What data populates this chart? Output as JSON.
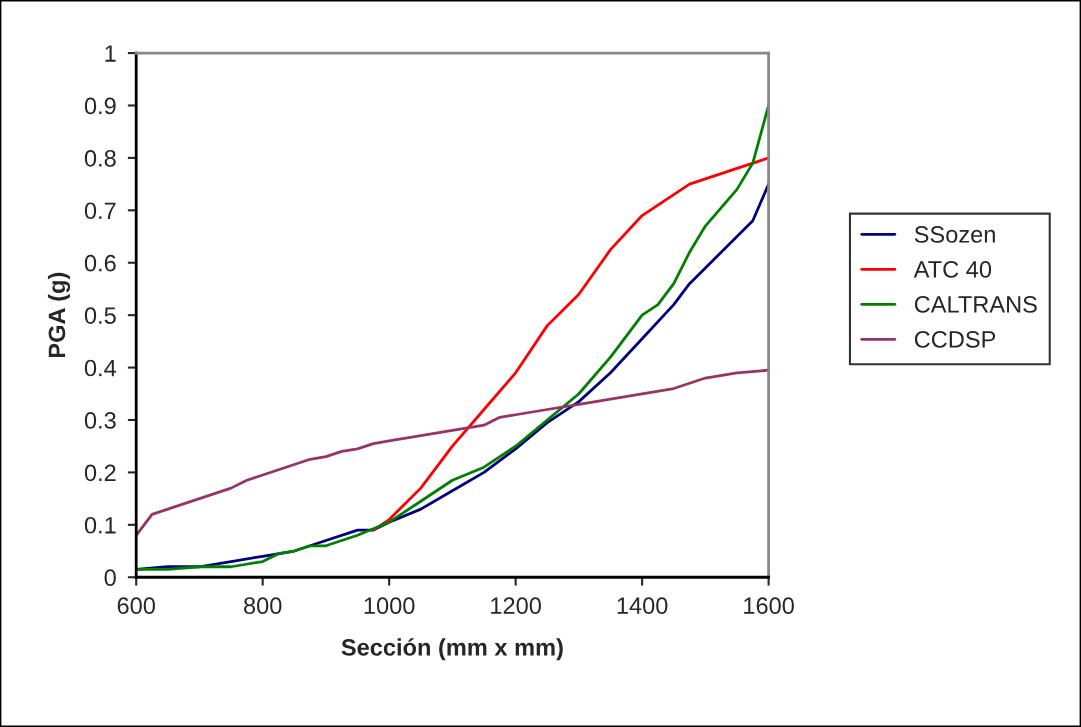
{
  "chart_data": {
    "type": "line",
    "xlabel": "Sección (mm x mm)",
    "ylabel": "PGA (g)",
    "xlim": [
      600,
      1600
    ],
    "xticks": [
      600,
      800,
      1000,
      1200,
      1400,
      1600
    ],
    "ylim": [
      0,
      1
    ],
    "yticks": [
      0,
      0.1,
      0.2,
      0.3,
      0.4,
      0.5,
      0.6,
      0.7,
      0.8,
      0.9,
      1
    ],
    "grid": false,
    "legend": "right",
    "series": [
      {
        "name": "SSozen",
        "color": "#000080",
        "x": [
          600,
          650,
          700,
          750,
          800,
          850,
          900,
          950,
          975,
          1000,
          1050,
          1100,
          1150,
          1200,
          1250,
          1300,
          1350,
          1400,
          1450,
          1475,
          1500,
          1550,
          1575,
          1600
        ],
        "values": [
          0.015,
          0.02,
          0.02,
          0.03,
          0.04,
          0.05,
          0.07,
          0.09,
          0.09,
          0.105,
          0.13,
          0.165,
          0.2,
          0.245,
          0.295,
          0.335,
          0.39,
          0.455,
          0.52,
          0.56,
          0.59,
          0.65,
          0.68,
          0.75
        ]
      },
      {
        "name": "ATC 40",
        "color": "#ff0000",
        "x": [
          975,
          1000,
          1050,
          1100,
          1150,
          1200,
          1250,
          1275,
          1300,
          1350,
          1400,
          1450,
          1475,
          1500,
          1550,
          1600
        ],
        "values": [
          0.09,
          0.11,
          0.17,
          0.25,
          0.32,
          0.39,
          0.48,
          0.51,
          0.54,
          0.625,
          0.69,
          0.73,
          0.75,
          0.76,
          0.78,
          0.8
        ]
      },
      {
        "name": "CALTRANS",
        "color": "#008000",
        "x": [
          600,
          650,
          700,
          750,
          800,
          825,
          850,
          875,
          900,
          950,
          1000,
          1050,
          1100,
          1150,
          1200,
          1250,
          1300,
          1350,
          1400,
          1425,
          1450,
          1475,
          1500,
          1550,
          1575,
          1600
        ],
        "values": [
          0.015,
          0.015,
          0.02,
          0.02,
          0.03,
          0.045,
          0.05,
          0.06,
          0.06,
          0.08,
          0.105,
          0.145,
          0.185,
          0.21,
          0.25,
          0.3,
          0.35,
          0.42,
          0.5,
          0.52,
          0.56,
          0.62,
          0.67,
          0.74,
          0.79,
          0.9
        ]
      },
      {
        "name": "CCDSP",
        "color": "#993366",
        "x": [
          600,
          625,
          650,
          700,
          750,
          775,
          800,
          850,
          875,
          900,
          925,
          950,
          975,
          1000,
          1050,
          1100,
          1150,
          1175,
          1200,
          1250,
          1300,
          1350,
          1400,
          1450,
          1475,
          1500,
          1550,
          1600
        ],
        "values": [
          0.08,
          0.12,
          0.13,
          0.15,
          0.17,
          0.185,
          0.195,
          0.215,
          0.225,
          0.23,
          0.24,
          0.245,
          0.255,
          0.26,
          0.27,
          0.28,
          0.29,
          0.305,
          0.31,
          0.32,
          0.33,
          0.34,
          0.35,
          0.36,
          0.37,
          0.38,
          0.39,
          0.395
        ]
      }
    ]
  }
}
